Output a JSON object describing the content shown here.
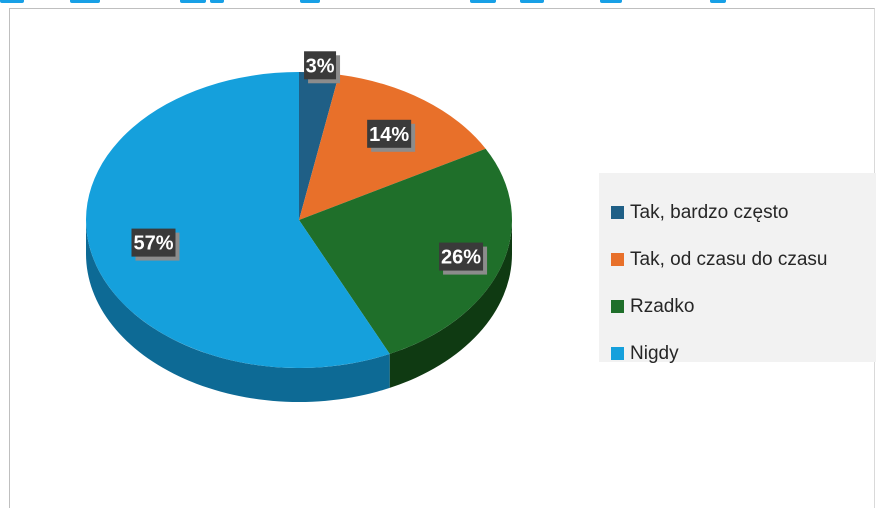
{
  "chart_data": {
    "type": "pie",
    "title": "",
    "categories": [
      "Tak, bardzo często",
      "Tak, od czasu do czasu",
      "Rzadko",
      "Nigdy"
    ],
    "values": [
      3,
      14,
      26,
      57
    ],
    "data_labels": [
      "3%",
      "14%",
      "26%",
      "57%"
    ],
    "colors": [
      "#1f5f86",
      "#e8702a",
      "#1f6f2a",
      "#15a0dc"
    ],
    "side_colors": [
      "#124a6b",
      "#b5541b",
      "#0f3a12",
      "#0d6a95"
    ],
    "style": "3d-tilted",
    "legend_position": "right"
  }
}
